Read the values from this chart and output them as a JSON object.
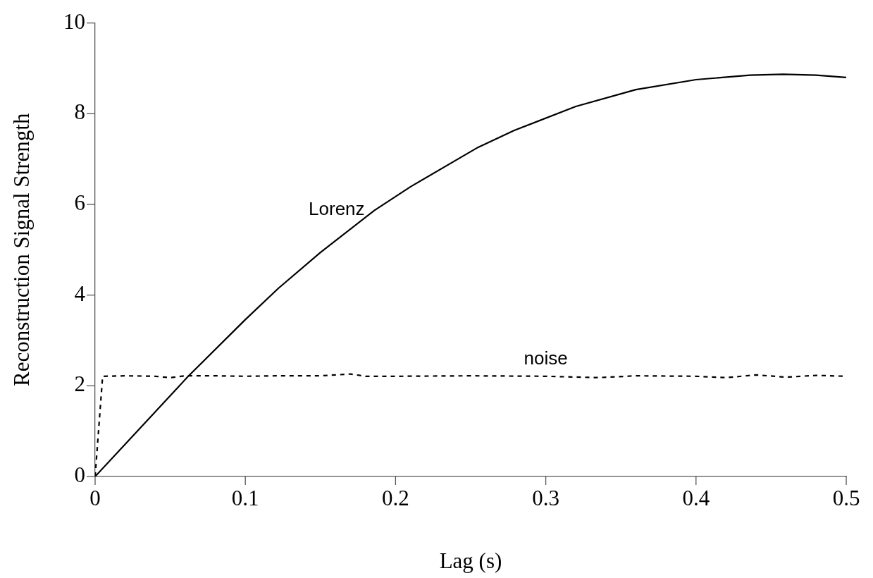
{
  "chart_data": {
    "type": "line",
    "xlabel": "Lag (s)",
    "ylabel": "Reconstruction Signal Strength",
    "xlim": [
      0,
      0.5
    ],
    "xticks": [
      0,
      0.1,
      0.2,
      0.3,
      0.4,
      0.5
    ],
    "ylim": [
      0,
      10
    ],
    "yticks": [
      0,
      2,
      4,
      6,
      8,
      10
    ],
    "grid": false,
    "legend": false,
    "marker": "none",
    "series": [
      {
        "name": "Lorenz",
        "color": "#000000",
        "line_style": "solid",
        "x": [
          0,
          0.025,
          0.062,
          0.1,
          0.122,
          0.15,
          0.186,
          0.21,
          0.255,
          0.279,
          0.32,
          0.36,
          0.4,
          0.436,
          0.458,
          0.48,
          0.5
        ],
        "values": [
          0,
          0.89,
          2.21,
          3.46,
          4.15,
          4.94,
          5.87,
          6.39,
          7.26,
          7.63,
          8.16,
          8.53,
          8.75,
          8.85,
          8.87,
          8.85,
          8.8
        ]
      },
      {
        "name": "noise",
        "color": "#000000",
        "line_style": "dashed",
        "x": [
          0,
          0.005,
          0.02,
          0.04,
          0.05,
          0.06,
          0.08,
          0.1,
          0.12,
          0.15,
          0.17,
          0.18,
          0.2,
          0.25,
          0.3,
          0.335,
          0.36,
          0.4,
          0.42,
          0.44,
          0.46,
          0.48,
          0.5
        ],
        "values": [
          0,
          2.21,
          2.22,
          2.21,
          2.18,
          2.22,
          2.22,
          2.21,
          2.22,
          2.22,
          2.26,
          2.21,
          2.21,
          2.22,
          2.21,
          2.18,
          2.22,
          2.21,
          2.18,
          2.24,
          2.19,
          2.23,
          2.21
        ]
      }
    ]
  }
}
